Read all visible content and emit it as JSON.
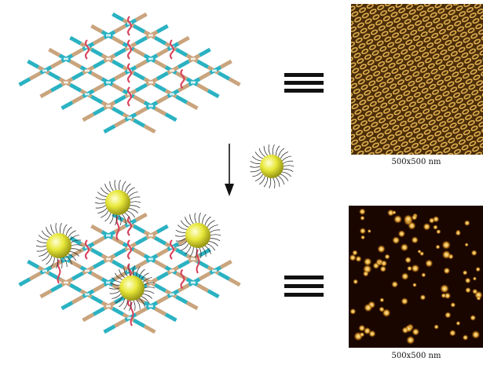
{
  "figure": {
    "top_scale_label": "500x500 nm",
    "bottom_scale_label": "500x500 nm",
    "colors": {
      "strand_a": "#2ab2c2",
      "strand_b": "#c9a47d",
      "linker": "#d8405a",
      "particle": "#dede3a",
      "ligand": "#333333",
      "afm_top_bg": "#4a2c08",
      "afm_top_fg": "#e2b252",
      "afm_bottom_bg": "#1a0600",
      "afm_bottom_fg": "#e0a030"
    },
    "icons": [
      "equals-icon",
      "down-arrow-icon",
      "nanoparticle-icon"
    ]
  }
}
